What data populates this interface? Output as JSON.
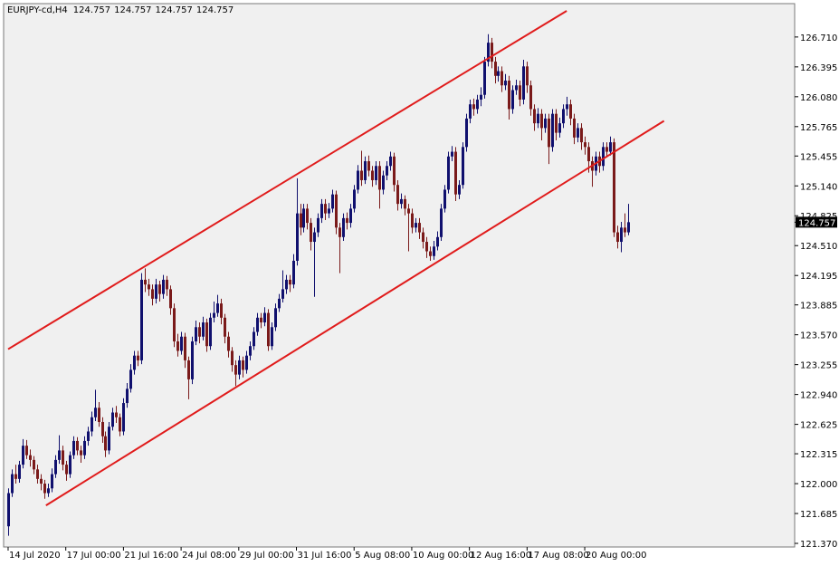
{
  "chart_data": {
    "type": "candlestick",
    "symbol": "EURJPY-cd,H4",
    "header_ohlc": [
      124.757,
      124.757,
      124.757,
      124.757
    ],
    "last_price": {
      "value": 124.757,
      "label": "124.757"
    },
    "up_color": "#10106e",
    "down_color": "#7a1a1a",
    "trendline_color": "#e01b1b",
    "xlim": [
      -1.25,
      218.25
    ],
    "ylim": [
      121.332,
      127.062
    ],
    "xticks": [
      {
        "value": 0,
        "label": "14 Jul 2020"
      },
      {
        "value": 16,
        "label": "17 Jul 00:00"
      },
      {
        "value": 32,
        "label": "21 Jul 16:00"
      },
      {
        "value": 48,
        "label": "24 Jul 08:00"
      },
      {
        "value": 64,
        "label": "29 Jul 00:00"
      },
      {
        "value": 80,
        "label": "31 Jul 16:00"
      },
      {
        "value": 96,
        "label": "5 Aug 08:00"
      },
      {
        "value": 112,
        "label": "10 Aug 00:00"
      },
      {
        "value": 128,
        "label": "12 Aug 16:00"
      },
      {
        "value": 144,
        "label": "17 Aug 08:00"
      },
      {
        "value": 160,
        "label": "20 Aug 00:00"
      }
    ],
    "yticks": [
      {
        "value": 126.71,
        "label": "126.710"
      },
      126.395,
      {
        "value": 126.08,
        "label": "126.080"
      },
      125.765,
      125.455,
      {
        "value": 125.14,
        "label": "125.140"
      },
      124.825,
      {
        "value": 124.51,
        "label": "124.510"
      },
      124.195,
      123.885,
      {
        "value": 123.57,
        "label": "123.570"
      },
      123.255,
      {
        "value": 122.94,
        "label": "122.940"
      },
      122.625,
      122.315,
      {
        "value": 122.0,
        "label": "122.000"
      },
      121.685,
      {
        "value": 121.37,
        "label": "121.370"
      }
    ],
    "trendlines": [
      {
        "x": [
          0,
          155
        ],
        "y": [
          123.418,
          126.986
        ]
      },
      {
        "x": [
          10.5,
          182
        ],
        "y": [
          121.77,
          125.825
        ]
      }
    ],
    "candles": [
      [
        121.55,
        121.95,
        121.45,
        121.9
      ],
      [
        121.9,
        122.15,
        121.86,
        122.1
      ],
      [
        122.1,
        122.2,
        122.0,
        122.05
      ],
      [
        122.05,
        122.24,
        122.01,
        122.2
      ],
      [
        122.2,
        122.47,
        122.16,
        122.4
      ],
      [
        122.4,
        122.46,
        122.26,
        122.3
      ],
      [
        122.3,
        122.36,
        122.18,
        122.25
      ],
      [
        122.25,
        122.29,
        122.1,
        122.15
      ],
      [
        122.15,
        122.2,
        122.0,
        122.05
      ],
      [
        122.05,
        122.1,
        121.93,
        122.0
      ],
      [
        122.0,
        122.04,
        121.84,
        121.9
      ],
      [
        121.9,
        122.0,
        121.86,
        121.95
      ],
      [
        121.95,
        122.16,
        121.91,
        122.1
      ],
      [
        122.1,
        122.3,
        122.06,
        122.25
      ],
      [
        122.25,
        122.51,
        122.21,
        122.35
      ],
      [
        122.35,
        122.4,
        122.14,
        122.2
      ],
      [
        122.2,
        122.24,
        122.03,
        122.1
      ],
      [
        122.1,
        122.34,
        122.06,
        122.3
      ],
      [
        122.3,
        122.5,
        122.26,
        122.45
      ],
      [
        122.45,
        122.49,
        122.3,
        122.35
      ],
      [
        122.35,
        122.4,
        122.22,
        122.3
      ],
      [
        122.3,
        122.5,
        122.26,
        122.45
      ],
      [
        122.45,
        122.6,
        122.4,
        122.55
      ],
      [
        122.55,
        122.76,
        122.5,
        122.7
      ],
      [
        122.7,
        122.99,
        122.66,
        122.8
      ],
      [
        122.8,
        122.86,
        122.6,
        122.65
      ],
      [
        122.65,
        122.7,
        122.43,
        122.5
      ],
      [
        122.5,
        122.55,
        122.28,
        122.35
      ],
      [
        122.35,
        122.65,
        122.31,
        122.6
      ],
      [
        122.6,
        122.8,
        122.56,
        122.75
      ],
      [
        122.75,
        122.82,
        122.64,
        122.7
      ],
      [
        122.7,
        122.74,
        122.5,
        122.55
      ],
      [
        122.55,
        122.9,
        122.51,
        122.85
      ],
      [
        122.85,
        123.06,
        122.8,
        123.0
      ],
      [
        123.0,
        123.26,
        122.96,
        123.2
      ],
      [
        123.2,
        123.4,
        123.15,
        123.35
      ],
      [
        123.35,
        123.4,
        123.24,
        123.3
      ],
      [
        123.3,
        124.22,
        123.26,
        124.15
      ],
      [
        124.15,
        124.27,
        124.02,
        124.1
      ],
      [
        124.1,
        124.16,
        123.98,
        124.05
      ],
      [
        124.05,
        124.1,
        123.88,
        123.95
      ],
      [
        123.95,
        124.16,
        123.9,
        124.1
      ],
      [
        124.1,
        124.14,
        123.92,
        124.0
      ],
      [
        124.0,
        124.2,
        123.95,
        124.15
      ],
      [
        124.15,
        124.19,
        123.98,
        124.05
      ],
      [
        124.05,
        124.09,
        123.78,
        123.85
      ],
      [
        123.85,
        123.9,
        123.44,
        123.5
      ],
      [
        123.5,
        123.58,
        123.34,
        123.4
      ],
      [
        123.4,
        123.6,
        123.36,
        123.55
      ],
      [
        123.55,
        123.59,
        123.22,
        123.3
      ],
      [
        123.3,
        123.34,
        122.89,
        123.1
      ],
      [
        123.1,
        123.55,
        123.05,
        123.5
      ],
      [
        123.5,
        123.72,
        123.46,
        123.65
      ],
      [
        123.65,
        123.7,
        123.48,
        123.55
      ],
      [
        123.55,
        123.76,
        123.51,
        123.7
      ],
      [
        123.7,
        123.74,
        123.39,
        123.45
      ],
      [
        123.45,
        123.8,
        123.41,
        123.75
      ],
      [
        123.75,
        123.92,
        123.7,
        123.8
      ],
      [
        123.8,
        123.99,
        123.76,
        123.9
      ],
      [
        123.9,
        123.95,
        123.68,
        123.75
      ],
      [
        123.75,
        123.79,
        123.48,
        123.55
      ],
      [
        123.55,
        123.6,
        123.33,
        123.4
      ],
      [
        123.4,
        123.44,
        123.18,
        123.25
      ],
      [
        123.25,
        123.3,
        123.03,
        123.15
      ],
      [
        123.15,
        123.35,
        123.1,
        123.3
      ],
      [
        123.3,
        123.34,
        123.12,
        123.2
      ],
      [
        123.2,
        123.4,
        123.16,
        123.35
      ],
      [
        123.35,
        123.5,
        123.3,
        123.45
      ],
      [
        123.45,
        123.65,
        123.41,
        123.6
      ],
      [
        123.6,
        123.8,
        123.56,
        123.75
      ],
      [
        123.75,
        123.8,
        123.64,
        123.7
      ],
      [
        123.7,
        123.86,
        123.66,
        123.8
      ],
      [
        123.8,
        123.84,
        123.4,
        123.45
      ],
      [
        123.45,
        123.7,
        123.41,
        123.65
      ],
      [
        123.65,
        123.9,
        123.61,
        123.85
      ],
      [
        123.85,
        124.0,
        123.81,
        123.95
      ],
      [
        123.95,
        124.25,
        123.91,
        124.05
      ],
      [
        124.05,
        124.2,
        124.0,
        124.15
      ],
      [
        124.15,
        124.2,
        124.02,
        124.1
      ],
      [
        124.1,
        124.42,
        124.06,
        124.35
      ],
      [
        124.35,
        125.22,
        124.3,
        124.85
      ],
      [
        124.85,
        124.95,
        124.62,
        124.7
      ],
      [
        124.7,
        124.95,
        124.65,
        124.9
      ],
      [
        124.9,
        124.95,
        124.68,
        124.75
      ],
      [
        124.75,
        124.8,
        124.46,
        124.55
      ],
      [
        124.55,
        124.7,
        123.97,
        124.65
      ],
      [
        124.65,
        124.85,
        124.6,
        124.8
      ],
      [
        124.8,
        125.0,
        124.75,
        124.95
      ],
      [
        124.95,
        125.0,
        124.78,
        124.85
      ],
      [
        124.85,
        124.96,
        124.8,
        124.9
      ],
      [
        124.9,
        125.1,
        124.86,
        125.05
      ],
      [
        125.05,
        125.09,
        124.63,
        124.7
      ],
      [
        124.7,
        124.75,
        124.22,
        124.6
      ],
      [
        124.6,
        124.85,
        124.56,
        124.8
      ],
      [
        124.8,
        124.86,
        124.68,
        124.75
      ],
      [
        124.75,
        124.95,
        124.7,
        124.9
      ],
      [
        124.9,
        125.15,
        124.86,
        125.1
      ],
      [
        125.1,
        125.36,
        125.06,
        125.3
      ],
      [
        125.3,
        125.51,
        125.14,
        125.2
      ],
      [
        125.2,
        125.45,
        125.16,
        125.4
      ],
      [
        125.4,
        125.46,
        125.24,
        125.3
      ],
      [
        125.3,
        125.35,
        125.13,
        125.2
      ],
      [
        125.2,
        125.4,
        125.15,
        125.35
      ],
      [
        125.35,
        125.4,
        124.9,
        125.1
      ],
      [
        125.1,
        125.3,
        125.05,
        125.25
      ],
      [
        125.25,
        125.4,
        125.2,
        125.35
      ],
      [
        125.35,
        125.5,
        125.3,
        125.45
      ],
      [
        125.45,
        125.49,
        125.08,
        125.15
      ],
      [
        125.15,
        125.2,
        124.88,
        124.95
      ],
      [
        124.95,
        125.06,
        124.9,
        125.0
      ],
      [
        125.0,
        125.04,
        124.83,
        124.9
      ],
      [
        124.9,
        124.95,
        124.45,
        124.85
      ],
      [
        124.85,
        124.9,
        124.64,
        124.7
      ],
      [
        124.7,
        124.8,
        124.65,
        124.75
      ],
      [
        124.75,
        124.8,
        124.58,
        124.65
      ],
      [
        124.65,
        124.7,
        124.48,
        124.55
      ],
      [
        124.55,
        124.6,
        124.38,
        124.45
      ],
      [
        124.45,
        124.5,
        124.35,
        124.4
      ],
      [
        124.4,
        124.56,
        124.36,
        124.5
      ],
      [
        124.5,
        124.66,
        124.46,
        124.6
      ],
      [
        124.6,
        124.95,
        124.56,
        124.9
      ],
      [
        124.9,
        125.15,
        124.86,
        125.1
      ],
      [
        125.1,
        125.5,
        125.06,
        125.45
      ],
      [
        125.45,
        125.56,
        125.4,
        125.5
      ],
      [
        125.5,
        125.55,
        124.98,
        125.05
      ],
      [
        125.05,
        125.2,
        125.0,
        125.15
      ],
      [
        125.15,
        125.6,
        125.11,
        125.55
      ],
      [
        125.55,
        125.9,
        125.5,
        125.85
      ],
      [
        125.85,
        126.05,
        125.8,
        126.0
      ],
      [
        126.0,
        126.06,
        125.88,
        125.95
      ],
      [
        125.95,
        126.1,
        125.9,
        126.05
      ],
      [
        126.05,
        126.18,
        125.98,
        126.1
      ],
      [
        126.1,
        126.5,
        126.06,
        126.45
      ],
      [
        126.45,
        126.74,
        126.4,
        126.65
      ],
      [
        126.65,
        126.7,
        126.38,
        126.45
      ],
      [
        126.45,
        126.5,
        126.22,
        126.3
      ],
      [
        126.3,
        126.4,
        126.24,
        126.35
      ],
      [
        126.35,
        126.4,
        126.13,
        126.2
      ],
      [
        126.2,
        126.32,
        126.15,
        126.25
      ],
      [
        126.25,
        126.3,
        125.84,
        125.95
      ],
      [
        125.95,
        126.2,
        125.9,
        126.15
      ],
      [
        126.15,
        126.26,
        126.1,
        126.2
      ],
      [
        126.2,
        126.25,
        125.98,
        126.05
      ],
      [
        126.05,
        126.47,
        126.0,
        126.4
      ],
      [
        126.4,
        126.45,
        126.12,
        126.2
      ],
      [
        126.2,
        126.25,
        125.88,
        125.95
      ],
      [
        125.95,
        126.0,
        125.72,
        125.8
      ],
      [
        125.8,
        125.96,
        125.75,
        125.9
      ],
      [
        125.9,
        125.95,
        125.62,
        125.75
      ],
      [
        125.75,
        125.9,
        125.7,
        125.85
      ],
      [
        125.85,
        125.9,
        125.37,
        125.55
      ],
      [
        125.55,
        125.95,
        125.5,
        125.9
      ],
      [
        125.9,
        125.95,
        125.62,
        125.7
      ],
      [
        125.7,
        125.86,
        125.65,
        125.8
      ],
      [
        125.8,
        126.0,
        125.75,
        125.95
      ],
      [
        125.95,
        126.08,
        125.88,
        126.0
      ],
      [
        126.0,
        126.05,
        125.78,
        125.85
      ],
      [
        125.85,
        125.9,
        125.58,
        125.65
      ],
      [
        125.65,
        125.8,
        125.6,
        125.75
      ],
      [
        125.75,
        125.8,
        125.52,
        125.6
      ],
      [
        125.6,
        125.66,
        125.47,
        125.55
      ],
      [
        125.55,
        125.6,
        125.28,
        125.4
      ],
      [
        125.4,
        125.45,
        125.13,
        125.3
      ],
      [
        125.3,
        125.5,
        125.25,
        125.45
      ],
      [
        125.45,
        125.5,
        125.28,
        125.35
      ],
      [
        125.35,
        125.6,
        125.3,
        125.55
      ],
      [
        125.55,
        125.6,
        125.44,
        125.5
      ],
      [
        125.5,
        125.66,
        125.46,
        125.6
      ],
      [
        125.6,
        125.64,
        124.6,
        124.65
      ],
      [
        124.65,
        124.72,
        124.48,
        124.55
      ],
      [
        124.55,
        124.76,
        124.44,
        124.7
      ],
      [
        124.7,
        124.85,
        124.6,
        124.65
      ],
      [
        124.65,
        124.95,
        124.62,
        124.757
      ]
    ]
  }
}
